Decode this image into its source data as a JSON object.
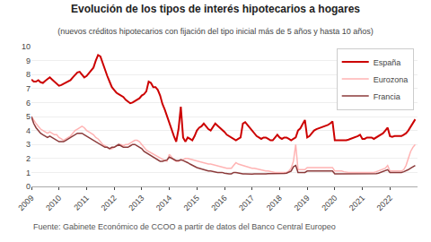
{
  "chart_data": {
    "type": "line",
    "title": "Evolución de los tipos de interés hipotecarios a hogares",
    "subtitle": "(nuevos créditos hipotecarios con fijación del tipo inicial más de 5 años y hasta 10 años)",
    "annotations": [
      "Fuente: Gabinete Económico de CCOO a partir de datos del Banco Central Europeo"
    ],
    "x": [
      2009,
      2009.083333,
      2009.166667,
      2009.25,
      2009.333333,
      2009.416667,
      2009.5,
      2009.583333,
      2009.666667,
      2009.75,
      2009.833333,
      2009.916667,
      2010,
      2010.083333,
      2010.166667,
      2010.25,
      2010.333333,
      2010.416667,
      2010.5,
      2010.583333,
      2010.666667,
      2010.75,
      2010.833333,
      2010.916667,
      2011,
      2011.083333,
      2011.166667,
      2011.25,
      2011.333333,
      2011.416667,
      2011.5,
      2011.583333,
      2011.666667,
      2011.75,
      2011.833333,
      2011.916667,
      2012,
      2012.083333,
      2012.166667,
      2012.25,
      2012.333333,
      2012.416667,
      2012.5,
      2012.583333,
      2012.666667,
      2012.75,
      2012.833333,
      2012.916667,
      2013,
      2013.083333,
      2013.166667,
      2013.25,
      2013.333333,
      2013.416667,
      2013.5,
      2013.583333,
      2013.666667,
      2013.75,
      2013.833333,
      2013.916667,
      2014,
      2014.083333,
      2014.166667,
      2014.25,
      2014.333333,
      2014.416667,
      2014.5,
      2014.583333,
      2014.666667,
      2014.75,
      2014.833333,
      2014.916667,
      2015,
      2015.083333,
      2015.166667,
      2015.25,
      2015.333333,
      2015.416667,
      2015.5,
      2015.583333,
      2015.666667,
      2015.75,
      2015.833333,
      2015.916667,
      2016,
      2016.083333,
      2016.166667,
      2016.25,
      2016.333333,
      2016.416667,
      2016.5,
      2016.583333,
      2016.666667,
      2016.75,
      2016.833333,
      2016.916667,
      2017,
      2017.083333,
      2017.166667,
      2017.25,
      2017.333333,
      2017.416667,
      2017.5,
      2017.583333,
      2017.666667,
      2017.75,
      2017.833333,
      2017.916667,
      2018,
      2018.083333,
      2018.166667,
      2018.25,
      2018.333333,
      2018.416667,
      2018.5,
      2018.583333,
      2018.666667,
      2018.75,
      2018.833333,
      2018.916667,
      2019,
      2019.083333,
      2019.166667,
      2019.25,
      2019.333333,
      2019.416667,
      2019.5,
      2019.583333,
      2019.666667,
      2019.75,
      2019.833333,
      2019.916667,
      2020,
      2020.083333,
      2020.166667,
      2020.25,
      2020.333333,
      2020.416667,
      2020.5,
      2020.583333,
      2020.666667,
      2020.75,
      2020.833333,
      2020.916667,
      2021,
      2021.083333,
      2021.166667,
      2021.25,
      2021.333333,
      2021.416667,
      2021.5,
      2021.583333,
      2021.666667,
      2021.75,
      2021.833333,
      2021.916667,
      2022,
      2022.083333,
      2022.166667,
      2022.25,
      2022.333333,
      2022.416667,
      2022.5,
      2022.583333,
      2022.666667,
      2022.75,
      2022.833333,
      2022.916667
    ],
    "series": [
      {
        "name": "España",
        "color": "#cc0000",
        "values": [
          7.65,
          7.5,
          7.5,
          7.6,
          7.45,
          7.4,
          7.55,
          7.7,
          7.8,
          7.65,
          7.5,
          7.3,
          7.2,
          7.25,
          7.35,
          7.4,
          7.5,
          7.6,
          7.8,
          8.0,
          8.15,
          8.2,
          8.0,
          7.8,
          7.9,
          8.1,
          8.3,
          8.5,
          9.0,
          9.4,
          9.3,
          8.8,
          8.3,
          7.9,
          7.5,
          7.1,
          6.9,
          6.7,
          6.6,
          6.5,
          6.4,
          6.2,
          6.05,
          5.95,
          6.0,
          6.1,
          6.2,
          6.3,
          6.5,
          6.6,
          6.8,
          7.5,
          7.4,
          7.1,
          7.1,
          6.9,
          6.5,
          5.9,
          5.5,
          5.0,
          4.5,
          4.0,
          3.6,
          3.2,
          4.1,
          5.7,
          3.5,
          3.2,
          3.5,
          3.4,
          3.3,
          3.6,
          4.0,
          4.2,
          4.3,
          4.5,
          4.3,
          4.1,
          4.0,
          4.3,
          4.5,
          4.35,
          4.2,
          4.1,
          3.9,
          3.7,
          3.6,
          3.5,
          3.4,
          3.3,
          3.4,
          3.5,
          4.5,
          4.6,
          4.4,
          4.2,
          4.0,
          3.8,
          3.6,
          3.5,
          3.4,
          3.5,
          3.5,
          3.4,
          3.3,
          3.3,
          3.5,
          3.7,
          3.5,
          3.4,
          3.5,
          3.5,
          3.4,
          3.3,
          3.4,
          3.5,
          4.0,
          4.15,
          4.45,
          4.75,
          3.5,
          3.6,
          3.8,
          4.0,
          4.1,
          4.15,
          4.2,
          4.3,
          4.35,
          4.4,
          4.5,
          4.65,
          3.3,
          3.3,
          3.3,
          3.3,
          3.3,
          3.3,
          3.35,
          3.4,
          3.45,
          3.5,
          3.6,
          3.7,
          3.4,
          3.4,
          3.5,
          3.5,
          3.5,
          3.4,
          3.5,
          3.6,
          3.7,
          3.8,
          4.0,
          4.2,
          3.6,
          3.55,
          3.6,
          3.6,
          3.6,
          3.6,
          3.7,
          3.8,
          4.0,
          4.3,
          4.5,
          4.8
        ]
      },
      {
        "name": "Eurozona",
        "color": "#ffb3b3",
        "values": [
          5.0,
          4.7,
          4.5,
          4.3,
          4.1,
          4.0,
          3.9,
          3.8,
          3.9,
          3.8,
          3.7,
          3.7,
          3.5,
          3.4,
          3.3,
          3.4,
          3.5,
          3.6,
          3.8,
          4.0,
          4.1,
          4.2,
          4.3,
          4.2,
          4.0,
          3.9,
          3.8,
          3.7,
          3.5,
          3.4,
          3.2,
          3.0,
          2.9,
          2.8,
          2.7,
          2.7,
          2.8,
          2.9,
          3.0,
          3.0,
          2.9,
          3.0,
          3.0,
          3.1,
          3.2,
          3.3,
          3.3,
          3.2,
          3.0,
          2.8,
          2.6,
          2.5,
          2.4,
          2.3,
          2.2,
          2.1,
          2.0,
          1.9,
          1.85,
          1.8,
          2.3,
          2.1,
          1.9,
          1.8,
          1.8,
          1.9,
          1.9,
          2.0,
          2.0,
          1.95,
          1.9,
          1.85,
          1.8,
          1.75,
          1.7,
          1.7,
          1.65,
          1.6,
          1.6,
          1.55,
          1.5,
          1.5,
          1.45,
          1.4,
          1.35,
          1.3,
          1.3,
          1.3,
          1.5,
          1.7,
          1.6,
          1.55,
          1.5,
          1.4,
          1.35,
          1.3,
          1.3,
          1.3,
          1.25,
          1.2,
          1.15,
          1.1,
          1.1,
          1.1,
          1.05,
          1.0,
          1.0,
          1.0,
          1.0,
          1.0,
          1.0,
          1.0,
          1.1,
          1.3,
          1.8,
          3.0,
          1.2,
          1.2,
          1.2,
          1.2,
          1.35,
          1.35,
          1.35,
          1.35,
          1.35,
          1.35,
          1.35,
          1.35,
          1.35,
          1.35,
          1.35,
          1.35,
          1.1,
          1.1,
          1.1,
          1.1,
          1.05,
          1.0,
          1.0,
          1.0,
          1.0,
          1.0,
          1.0,
          1.0,
          1.0,
          1.0,
          1.0,
          1.0,
          1.0,
          1.0,
          1.05,
          1.1,
          1.15,
          1.2,
          1.3,
          1.5,
          1.1,
          1.1,
          1.1,
          1.1,
          1.1,
          1.1,
          1.2,
          1.5,
          2.0,
          2.5,
          2.8,
          3.0
        ]
      },
      {
        "name": "Francia",
        "color": "#8b3a3a",
        "values": [
          5.0,
          4.5,
          4.2,
          4.0,
          3.8,
          3.7,
          3.6,
          3.5,
          3.6,
          3.5,
          3.4,
          3.3,
          3.2,
          3.2,
          3.2,
          3.3,
          3.4,
          3.5,
          3.6,
          3.7,
          3.8,
          3.8,
          3.8,
          3.7,
          3.6,
          3.5,
          3.4,
          3.3,
          3.2,
          3.1,
          3.0,
          2.9,
          2.8,
          2.8,
          2.7,
          2.8,
          2.8,
          2.9,
          3.0,
          2.9,
          2.8,
          2.8,
          2.8,
          2.9,
          3.0,
          3.0,
          2.9,
          2.8,
          2.7,
          2.5,
          2.4,
          2.3,
          2.2,
          2.1,
          2.0,
          1.9,
          1.8,
          1.8,
          1.85,
          1.9,
          2.1,
          2.0,
          1.9,
          1.85,
          1.85,
          1.9,
          1.85,
          1.8,
          1.7,
          1.6,
          1.5,
          1.4,
          1.35,
          1.3,
          1.25,
          1.2,
          1.15,
          1.1,
          1.1,
          1.05,
          1.0,
          1.0,
          1.0,
          1.0,
          0.95,
          0.9,
          0.9,
          0.9,
          1.0,
          1.0,
          0.95,
          0.9,
          0.9,
          0.9,
          0.88,
          0.87,
          0.88,
          0.9,
          0.9,
          0.88,
          0.87,
          0.87,
          0.9,
          0.92,
          0.92,
          0.9,
          0.9,
          0.9,
          0.92,
          0.92,
          0.93,
          0.95,
          1.0,
          1.1,
          1.4,
          1.5,
          1.0,
          1.0,
          1.0,
          1.0,
          1.1,
          1.1,
          1.1,
          1.1,
          1.1,
          1.1,
          1.1,
          1.1,
          1.1,
          1.1,
          1.1,
          1.1,
          0.9,
          0.9,
          0.9,
          0.9,
          0.9,
          0.9,
          0.9,
          0.9,
          0.9,
          0.9,
          0.9,
          0.9,
          0.9,
          0.9,
          0.9,
          0.9,
          0.9,
          0.9,
          0.92,
          0.95,
          1.0,
          1.05,
          1.1,
          1.2,
          1.0,
          1.0,
          1.0,
          1.0,
          1.0,
          1.0,
          1.05,
          1.1,
          1.2,
          1.3,
          1.4,
          1.5
        ]
      }
    ],
    "xlim": [
      2009,
      2023
    ],
    "xticks": [
      2009,
      2010,
      2011,
      2012,
      2013,
      2014,
      2015,
      2016,
      2017,
      2018,
      2019,
      2020,
      2021,
      2022
    ],
    "ylim": [
      0,
      10
    ],
    "yticks": [
      0,
      1,
      2,
      3,
      4,
      5,
      6,
      7,
      8,
      9,
      10
    ],
    "grid": "y",
    "legend": "upper right"
  }
}
